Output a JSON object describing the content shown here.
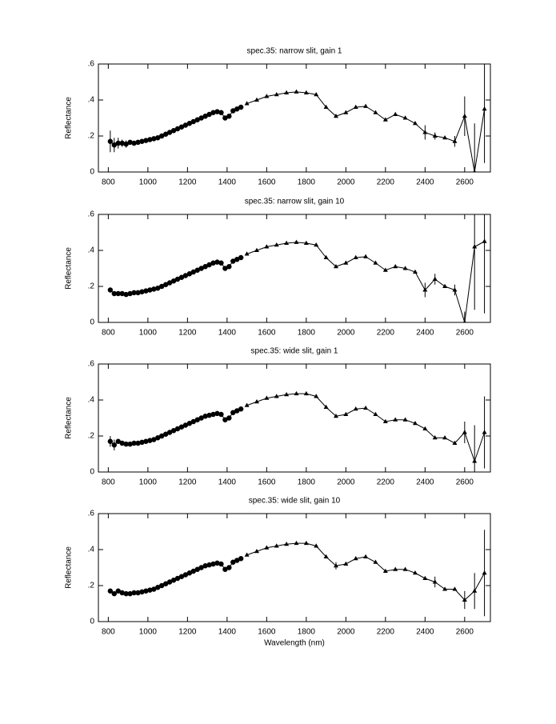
{
  "chart_data": [
    {
      "type": "line",
      "title": "spec.35: narrow slit, gain 1",
      "ylabel": "Reflectance",
      "color": "#000000",
      "xlim": [
        750,
        2730
      ],
      "ylim": [
        0,
        0.6
      ],
      "xticks": [
        800,
        1000,
        1200,
        1400,
        1600,
        1800,
        2000,
        2200,
        2400,
        2600
      ],
      "yticks": [
        0,
        {
          "value": 0.2,
          "label": ".2"
        },
        {
          "value": 0.4,
          "label": ".4"
        },
        {
          "value": 0.6,
          "label": ".6"
        }
      ],
      "series": [
        {
          "marker": "circle",
          "x": [
            810,
            830,
            850,
            870,
            890,
            910,
            930,
            950,
            970,
            990,
            1010,
            1030,
            1050,
            1070,
            1090,
            1110,
            1130,
            1150,
            1170,
            1190,
            1210,
            1230,
            1250,
            1270,
            1290,
            1310,
            1330,
            1350,
            1370,
            1390,
            1410,
            1430,
            1450,
            1470
          ],
          "values": [
            0.17,
            0.15,
            0.16,
            0.16,
            0.155,
            0.165,
            0.16,
            0.165,
            0.17,
            0.175,
            0.18,
            0.185,
            0.19,
            0.2,
            0.21,
            0.22,
            0.23,
            0.24,
            0.25,
            0.26,
            0.27,
            0.28,
            0.29,
            0.3,
            0.31,
            0.32,
            0.33,
            0.335,
            0.33,
            0.3,
            0.31,
            0.34,
            0.35,
            0.36
          ],
          "errors": [
            0.06,
            0.04,
            0.03,
            0.02,
            0.02,
            null,
            null,
            null,
            null,
            null,
            null,
            null,
            null,
            null,
            null,
            null,
            null,
            null,
            null,
            null,
            null,
            null,
            null,
            null,
            null,
            null,
            null,
            null,
            null,
            null,
            null,
            null,
            null,
            null
          ]
        },
        {
          "marker": "triangle",
          "x": [
            1500,
            1550,
            1600,
            1650,
            1700,
            1750,
            1800,
            1850,
            1900,
            1950,
            2000,
            2050,
            2100,
            2150,
            2200,
            2250,
            2300,
            2350,
            2400,
            2450,
            2500,
            2550,
            2600,
            2650,
            2700
          ],
          "values": [
            0.38,
            0.4,
            0.42,
            0.43,
            0.44,
            0.445,
            0.44,
            0.43,
            0.36,
            0.31,
            0.33,
            0.36,
            0.365,
            0.33,
            0.29,
            0.32,
            0.3,
            0.27,
            0.22,
            0.2,
            0.19,
            0.17,
            0.31,
            0,
            0.35
          ],
          "errors": [
            null,
            null,
            null,
            null,
            null,
            null,
            null,
            null,
            null,
            null,
            null,
            null,
            null,
            null,
            null,
            null,
            null,
            null,
            0.04,
            0.02,
            null,
            0.03,
            0.11,
            0.27,
            0.3
          ]
        }
      ]
    },
    {
      "type": "line",
      "title": "spec.35: narrow slit, gain 10",
      "ylabel": "Reflectance",
      "color": "#000000",
      "xlim": [
        750,
        2730
      ],
      "ylim": [
        0,
        0.6
      ],
      "xticks": [
        800,
        1000,
        1200,
        1400,
        1600,
        1800,
        2000,
        2200,
        2400,
        2600
      ],
      "yticks": [
        0,
        {
          "value": 0.2,
          "label": ".2"
        },
        {
          "value": 0.4,
          "label": ".4"
        },
        {
          "value": 0.6,
          "label": ".6"
        }
      ],
      "series": [
        {
          "marker": "circle",
          "x": [
            810,
            830,
            850,
            870,
            890,
            910,
            930,
            950,
            970,
            990,
            1010,
            1030,
            1050,
            1070,
            1090,
            1110,
            1130,
            1150,
            1170,
            1190,
            1210,
            1230,
            1250,
            1270,
            1290,
            1310,
            1330,
            1350,
            1370,
            1390,
            1410,
            1430,
            1450,
            1470
          ],
          "values": [
            0.18,
            0.16,
            0.16,
            0.16,
            0.155,
            0.16,
            0.165,
            0.165,
            0.17,
            0.175,
            0.18,
            0.185,
            0.19,
            0.2,
            0.21,
            0.22,
            0.23,
            0.24,
            0.25,
            0.26,
            0.27,
            0.28,
            0.29,
            0.3,
            0.31,
            0.32,
            0.33,
            0.335,
            0.33,
            0.3,
            0.31,
            0.34,
            0.35,
            0.36
          ]
        },
        {
          "marker": "triangle",
          "x": [
            1500,
            1550,
            1600,
            1650,
            1700,
            1750,
            1800,
            1850,
            1900,
            1950,
            2000,
            2050,
            2100,
            2150,
            2200,
            2250,
            2300,
            2350,
            2400,
            2450,
            2500,
            2550,
            2600,
            2650,
            2700
          ],
          "values": [
            0.38,
            0.4,
            0.42,
            0.43,
            0.44,
            0.445,
            0.44,
            0.43,
            0.36,
            0.31,
            0.33,
            0.36,
            0.365,
            0.33,
            0.29,
            0.31,
            0.3,
            0.28,
            0.18,
            0.24,
            0.2,
            0.18,
            0,
            0.42,
            0.45
          ],
          "errors": [
            null,
            null,
            null,
            null,
            null,
            null,
            null,
            null,
            null,
            null,
            null,
            null,
            null,
            null,
            null,
            null,
            null,
            null,
            0.04,
            0.03,
            null,
            0.03,
            0.06,
            0.35,
            0.4
          ]
        }
      ]
    },
    {
      "type": "line",
      "title": "spec.35: wide slit, gain 1",
      "ylabel": "Reflectance",
      "color": "#000000",
      "xlim": [
        750,
        2730
      ],
      "ylim": [
        0,
        0.6
      ],
      "xticks": [
        800,
        1000,
        1200,
        1400,
        1600,
        1800,
        2000,
        2200,
        2400,
        2600
      ],
      "yticks": [
        0,
        {
          "value": 0.2,
          "label": ".2"
        },
        {
          "value": 0.4,
          "label": ".4"
        },
        {
          "value": 0.6,
          "label": ".6"
        }
      ],
      "series": [
        {
          "marker": "circle",
          "x": [
            810,
            830,
            850,
            870,
            890,
            910,
            930,
            950,
            970,
            990,
            1010,
            1030,
            1050,
            1070,
            1090,
            1110,
            1130,
            1150,
            1170,
            1190,
            1210,
            1230,
            1250,
            1270,
            1290,
            1310,
            1330,
            1350,
            1370,
            1390,
            1410,
            1430,
            1450,
            1470
          ],
          "values": [
            0.17,
            0.15,
            0.17,
            0.16,
            0.155,
            0.155,
            0.16,
            0.16,
            0.165,
            0.17,
            0.175,
            0.18,
            0.19,
            0.2,
            0.21,
            0.22,
            0.23,
            0.24,
            0.25,
            0.26,
            0.27,
            0.28,
            0.29,
            0.3,
            0.31,
            0.315,
            0.32,
            0.325,
            0.32,
            0.29,
            0.3,
            0.33,
            0.34,
            0.35
          ],
          "errors": [
            0.03,
            0.03,
            null,
            null,
            null,
            null,
            null,
            null,
            null,
            null,
            null,
            null,
            null,
            null,
            null,
            null,
            null,
            null,
            null,
            null,
            null,
            null,
            null,
            null,
            null,
            null,
            null,
            null,
            null,
            null,
            null,
            null,
            null,
            null
          ]
        },
        {
          "marker": "triangle",
          "x": [
            1500,
            1550,
            1600,
            1650,
            1700,
            1750,
            1800,
            1850,
            1900,
            1950,
            2000,
            2050,
            2100,
            2150,
            2200,
            2250,
            2300,
            2350,
            2400,
            2450,
            2500,
            2550,
            2600,
            2650,
            2700
          ],
          "values": [
            0.37,
            0.39,
            0.41,
            0.42,
            0.43,
            0.435,
            0.435,
            0.42,
            0.36,
            0.31,
            0.32,
            0.35,
            0.355,
            0.32,
            0.28,
            0.29,
            0.29,
            0.27,
            0.24,
            0.19,
            0.19,
            0.16,
            0.22,
            0.06,
            0.22
          ],
          "errors": [
            null,
            null,
            null,
            null,
            null,
            null,
            null,
            null,
            null,
            null,
            null,
            null,
            null,
            null,
            null,
            null,
            null,
            null,
            null,
            null,
            null,
            null,
            0.06,
            0.2,
            0.2
          ]
        }
      ]
    },
    {
      "type": "line",
      "title": "spec.35: wide slit, gain 10",
      "ylabel": "Reflectance",
      "xlabel": "Wavelength (nm)",
      "color": "#000000",
      "xlim": [
        750,
        2730
      ],
      "ylim": [
        0,
        0.6
      ],
      "xticks": [
        800,
        1000,
        1200,
        1400,
        1600,
        1800,
        2000,
        2200,
        2400,
        2600
      ],
      "yticks": [
        0,
        {
          "value": 0.2,
          "label": ".2"
        },
        {
          "value": 0.4,
          "label": ".4"
        },
        {
          "value": 0.6,
          "label": ".6"
        }
      ],
      "series": [
        {
          "marker": "circle",
          "x": [
            810,
            830,
            850,
            870,
            890,
            910,
            930,
            950,
            970,
            990,
            1010,
            1030,
            1050,
            1070,
            1090,
            1110,
            1130,
            1150,
            1170,
            1190,
            1210,
            1230,
            1250,
            1270,
            1290,
            1310,
            1330,
            1350,
            1370,
            1390,
            1410,
            1430,
            1450,
            1470
          ],
          "values": [
            0.17,
            0.155,
            0.17,
            0.16,
            0.155,
            0.155,
            0.16,
            0.16,
            0.165,
            0.17,
            0.175,
            0.18,
            0.19,
            0.2,
            0.21,
            0.22,
            0.23,
            0.24,
            0.25,
            0.26,
            0.27,
            0.28,
            0.29,
            0.3,
            0.31,
            0.315,
            0.32,
            0.325,
            0.32,
            0.29,
            0.3,
            0.33,
            0.34,
            0.35
          ]
        },
        {
          "marker": "triangle",
          "x": [
            1500,
            1550,
            1600,
            1650,
            1700,
            1750,
            1800,
            1850,
            1900,
            1950,
            2000,
            2050,
            2100,
            2150,
            2200,
            2250,
            2300,
            2350,
            2400,
            2450,
            2500,
            2550,
            2600,
            2650,
            2700
          ],
          "values": [
            0.37,
            0.39,
            0.41,
            0.42,
            0.43,
            0.435,
            0.435,
            0.42,
            0.36,
            0.31,
            0.32,
            0.35,
            0.36,
            0.33,
            0.28,
            0.29,
            0.29,
            0.27,
            0.24,
            0.22,
            0.18,
            0.18,
            0.12,
            0.17,
            0.27
          ],
          "errors": [
            null,
            null,
            null,
            null,
            null,
            null,
            null,
            null,
            null,
            0.02,
            null,
            null,
            null,
            null,
            null,
            null,
            null,
            null,
            null,
            0.03,
            null,
            null,
            0.05,
            0.1,
            0.24
          ]
        }
      ]
    }
  ]
}
